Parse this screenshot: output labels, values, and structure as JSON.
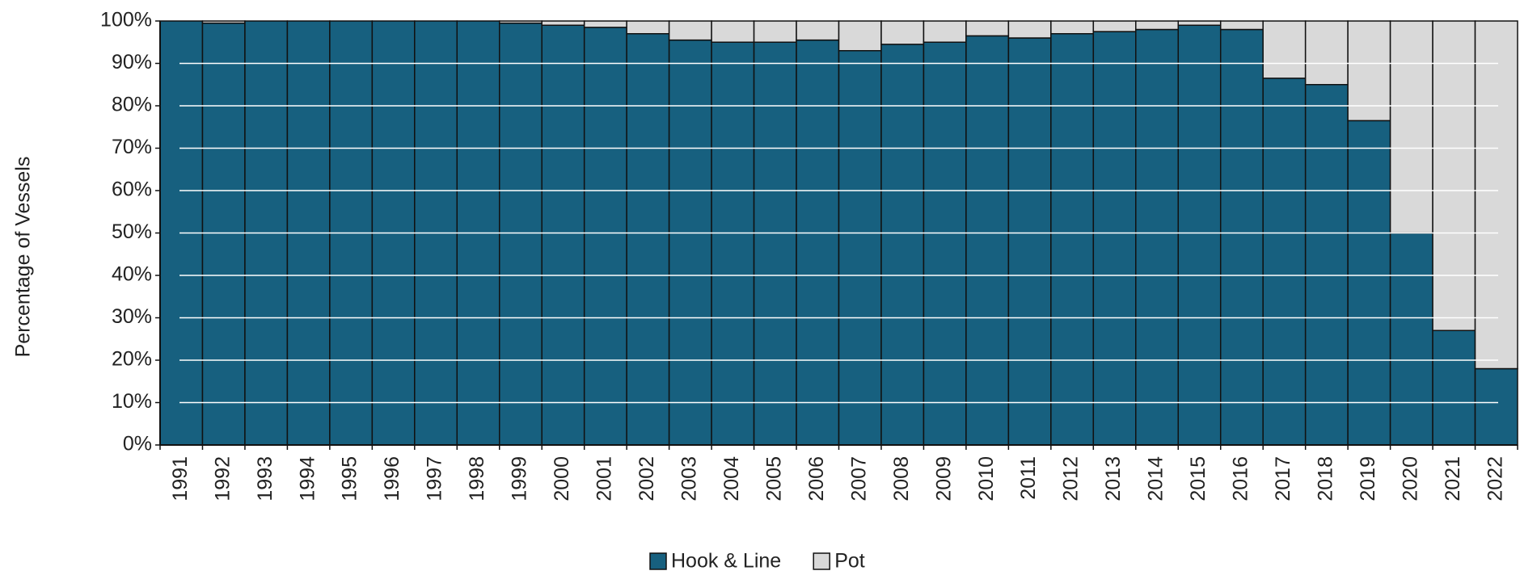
{
  "chart_data": {
    "type": "bar",
    "stacked": true,
    "y_label": "Percentage of Vessels",
    "categories": [
      "1991",
      "1992",
      "1993",
      "1994",
      "1995",
      "1996",
      "1997",
      "1998",
      "1999",
      "2000",
      "2001",
      "2002",
      "2003",
      "2004",
      "2005",
      "2006",
      "2007",
      "2008",
      "2009",
      "2010",
      "2011",
      "2012",
      "2013",
      "2014",
      "2015",
      "2016",
      "2017",
      "2018",
      "2019",
      "2020",
      "2021",
      "2022"
    ],
    "series": [
      {
        "name": "Hook & Line",
        "color": "#17607f",
        "values": [
          100,
          99.5,
          100,
          100,
          100,
          100,
          100,
          100,
          99.5,
          99,
          98.5,
          97,
          95.5,
          95,
          95,
          95.5,
          93,
          94.5,
          95,
          96.5,
          96,
          97,
          97.5,
          98,
          99,
          98,
          86.5,
          85,
          76.5,
          50,
          27,
          18
        ]
      },
      {
        "name": "Pot",
        "color": "#d9d9d9",
        "values": [
          0,
          0.5,
          0,
          0,
          0,
          0,
          0,
          0,
          0.5,
          1,
          1.5,
          3,
          4.5,
          5,
          5,
          4.5,
          7,
          5.5,
          5,
          3.5,
          4,
          3,
          2.5,
          2,
          1,
          2,
          13.5,
          15,
          23.5,
          50,
          73,
          82
        ]
      }
    ],
    "ylim": [
      0,
      100
    ],
    "yticks": [
      {
        "value": 0,
        "label": "0%"
      },
      {
        "value": 10,
        "label": "10%"
      },
      {
        "value": 20,
        "label": "20%"
      },
      {
        "value": 30,
        "label": "30%"
      },
      {
        "value": 40,
        "label": "40%"
      },
      {
        "value": 50,
        "label": "50%"
      },
      {
        "value": 60,
        "label": "60%"
      },
      {
        "value": 70,
        "label": "70%"
      },
      {
        "value": 80,
        "label": "80%"
      },
      {
        "value": 90,
        "label": "90%"
      },
      {
        "value": 100,
        "label": "100%"
      }
    ],
    "grid": true,
    "legend": "bottom"
  }
}
